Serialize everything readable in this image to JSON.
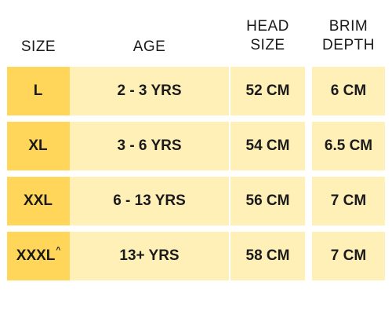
{
  "headers": {
    "size": "SIZE",
    "age": "AGE",
    "head_line1": "HEAD",
    "head_line2": "SIZE",
    "brim_line1": "BRIM",
    "brim_line2": "DEPTH"
  },
  "rows": [
    {
      "size": "L",
      "size_mark": "",
      "age": "2 - 3 YRS",
      "head": "52 CM",
      "brim": "6 CM"
    },
    {
      "size": "XL",
      "size_mark": "",
      "age": "3 - 6 YRS",
      "head": "54 CM",
      "brim": "6.5 CM"
    },
    {
      "size": "XXL",
      "size_mark": "",
      "age": "6 - 13 YRS",
      "head": "56 CM",
      "brim": "7 CM"
    },
    {
      "size": "XXXL",
      "size_mark": "^",
      "age": "13+ YRS",
      "head": "58 CM",
      "brim": "7 CM"
    }
  ],
  "colors": {
    "size_column": "#ffd55a",
    "other_columns": "#fff0b8",
    "text": "#1a1a1a"
  }
}
